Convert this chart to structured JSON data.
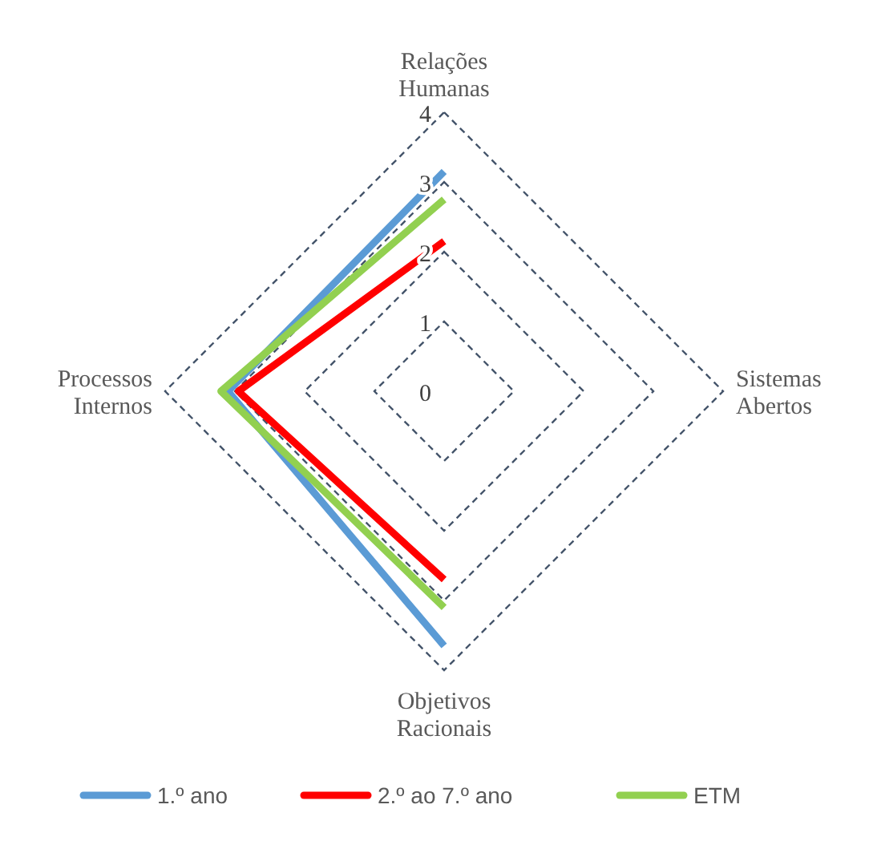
{
  "chart_data": {
    "type": "radar",
    "categories": [
      "Relações Humanas",
      "Sistemas Abertos",
      "Objetivos Racionais",
      "Processos Internos"
    ],
    "series": [
      {
        "name": "1.º ano",
        "color": "#5b9bd5",
        "values": [
          3.15,
          null,
          3.65,
          3.1
        ]
      },
      {
        "name": "2.º ao 7.º ano",
        "color": "#ff0000",
        "values": [
          2.15,
          null,
          2.7,
          2.95
        ]
      },
      {
        "name": "ETM",
        "color": "#92d050",
        "values": [
          2.75,
          null,
          3.1,
          3.2
        ]
      }
    ],
    "ylim": [
      0,
      4
    ],
    "yticks": [
      0,
      1,
      2,
      3,
      4
    ],
    "grid": true,
    "legend": "bottom",
    "line_style": "solid",
    "marker": "none"
  }
}
